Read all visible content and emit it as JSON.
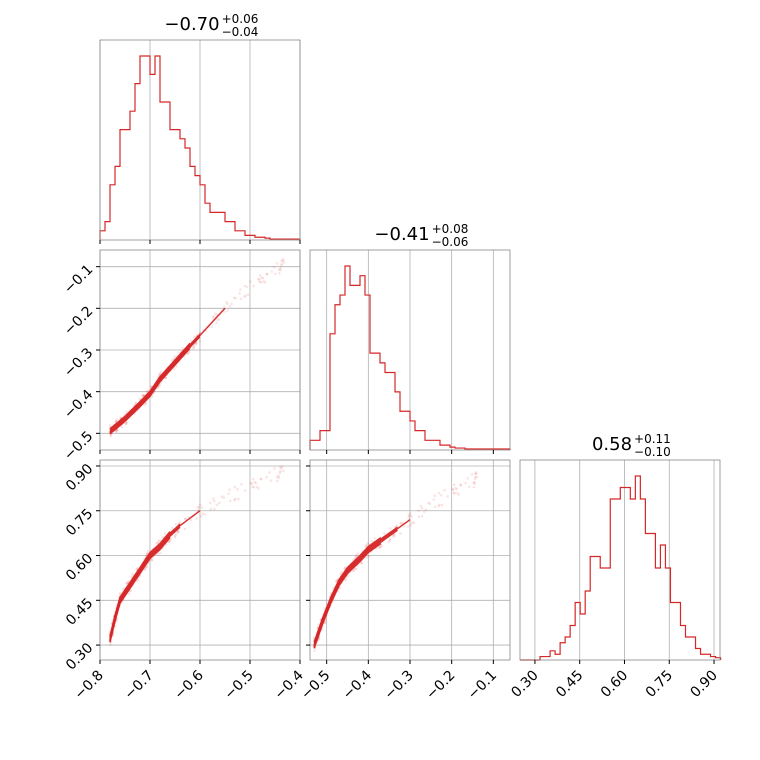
{
  "chart_data": {
    "type": "corner",
    "color": "#d62728",
    "parameters": [
      {
        "median": -0.7,
        "err_plus": 0.06,
        "err_minus": 0.04,
        "title_main": "−0.70",
        "title_sup": "+0.06",
        "title_sub": "−0.04"
      },
      {
        "median": -0.41,
        "err_plus": 0.08,
        "err_minus": 0.06,
        "title_main": "−0.41",
        "title_sup": "+0.08",
        "title_sub": "−0.06"
      },
      {
        "median": 0.58,
        "err_plus": 0.11,
        "err_minus": 0.1,
        "title_main": "0.58",
        "title_sup": "+0.11",
        "title_sub": "−0.10"
      }
    ],
    "axes": {
      "p1": {
        "range": [
          -0.8,
          -0.4
        ],
        "ticks": [
          -0.8,
          -0.7,
          -0.6,
          -0.5,
          -0.4
        ],
        "tick_labels": [
          "−0.8",
          "−0.7",
          "−0.6",
          "−0.5",
          "−0.4"
        ]
      },
      "p2": {
        "range": [
          -0.54,
          -0.06
        ],
        "ticks": [
          -0.5,
          -0.4,
          -0.3,
          -0.2,
          -0.1
        ],
        "tick_labels": [
          "−0.5",
          "−0.4",
          "−0.3",
          "−0.2",
          "−0.1"
        ]
      },
      "p3": {
        "range": [
          0.25,
          0.92
        ],
        "ticks": [
          0.3,
          0.45,
          0.6,
          0.75,
          0.9
        ],
        "tick_labels": [
          "0.30",
          "0.45",
          "0.60",
          "0.75",
          "0.90"
        ]
      }
    },
    "histograms": [
      {
        "param": "p1",
        "bin_start": -0.8,
        "bin_width": 0.01,
        "counts": [
          1,
          2,
          6,
          8,
          12,
          12,
          14,
          17,
          20,
          20,
          18,
          20,
          15,
          15,
          12,
          12,
          11,
          10,
          8,
          7,
          6,
          4,
          3,
          3,
          3,
          2,
          2,
          1,
          1,
          0.5,
          0.5,
          0.3,
          0.3,
          0.2,
          0.1,
          0.1,
          0.1,
          0.1,
          0.1,
          0.1
        ]
      },
      {
        "param": "p2",
        "bin_start": -0.54,
        "bin_width": 0.012,
        "counts": [
          1,
          1,
          2,
          2,
          12,
          15,
          16,
          19,
          17,
          17,
          18,
          16,
          10,
          10,
          9,
          8,
          8,
          6,
          4,
          4,
          3,
          2,
          2,
          1,
          1,
          1,
          0.5,
          0.5,
          0.3,
          0.2,
          0.2,
          0.1,
          0.1,
          0.1,
          0.1,
          0.1,
          0.1,
          0.1,
          0.1,
          0.1
        ]
      },
      {
        "param": "p3",
        "bin_start": 0.25,
        "bin_width": 0.0168,
        "counts": [
          0,
          0,
          0,
          0,
          0.3,
          0.3,
          0.8,
          0.5,
          1.5,
          2,
          3,
          5,
          4,
          6,
          9,
          9,
          8,
          8,
          14,
          14,
          15,
          15,
          14,
          16,
          14,
          11,
          11,
          8,
          10,
          8,
          5,
          5,
          3,
          2,
          2,
          1,
          0.5,
          0.5,
          0.3,
          0.2
        ]
      }
    ],
    "pairs": [
      {
        "x": "p1",
        "y": "p2",
        "ridge": [
          [
            -0.78,
            -0.495
          ],
          [
            -0.75,
            -0.465
          ],
          [
            -0.72,
            -0.43
          ],
          [
            -0.7,
            -0.405
          ],
          [
            -0.68,
            -0.37
          ],
          [
            -0.65,
            -0.33
          ],
          [
            -0.62,
            -0.29
          ],
          [
            -0.6,
            -0.265
          ],
          [
            -0.55,
            -0.2
          ],
          [
            -0.5,
            -0.15
          ],
          [
            -0.45,
            -0.11
          ],
          [
            -0.42,
            -0.08
          ]
        ],
        "width": 0.012
      },
      {
        "x": "p1",
        "y": "p3",
        "ridge": [
          [
            -0.78,
            0.32
          ],
          [
            -0.77,
            0.39
          ],
          [
            -0.76,
            0.45
          ],
          [
            -0.74,
            0.5
          ],
          [
            -0.72,
            0.55
          ],
          [
            -0.7,
            0.6
          ],
          [
            -0.68,
            0.63
          ],
          [
            -0.66,
            0.67
          ],
          [
            -0.64,
            0.7
          ],
          [
            -0.6,
            0.75
          ],
          [
            -0.55,
            0.79
          ],
          [
            -0.5,
            0.83
          ],
          [
            -0.45,
            0.87
          ],
          [
            -0.42,
            0.89
          ]
        ],
        "width": 0.02
      },
      {
        "x": "p2",
        "y": "p3",
        "ridge": [
          [
            -0.53,
            0.3
          ],
          [
            -0.51,
            0.38
          ],
          [
            -0.49,
            0.45
          ],
          [
            -0.47,
            0.51
          ],
          [
            -0.45,
            0.55
          ],
          [
            -0.42,
            0.59
          ],
          [
            -0.4,
            0.62
          ],
          [
            -0.37,
            0.65
          ],
          [
            -0.33,
            0.69
          ],
          [
            -0.3,
            0.72
          ],
          [
            -0.25,
            0.77
          ],
          [
            -0.2,
            0.81
          ],
          [
            -0.15,
            0.85
          ],
          [
            -0.13,
            0.87
          ]
        ],
        "width": 0.02
      }
    ]
  }
}
